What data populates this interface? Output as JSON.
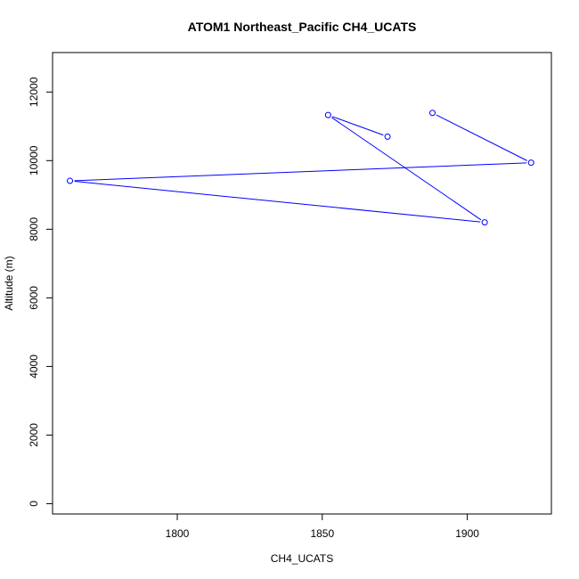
{
  "chart_data": {
    "type": "line",
    "title": "ATOM1 Northeast_Pacific CH4_UCATS",
    "xlabel": "CH4_UCATS",
    "ylabel": "Altitude (m)",
    "xlim": [
      1757,
      1929
    ],
    "ylim": [
      -300,
      13150
    ],
    "xticks": [
      1800,
      1850,
      1900
    ],
    "yticks": [
      0,
      2000,
      4000,
      6000,
      8000,
      10000,
      12000
    ],
    "xtick_labels": [
      "1800",
      "1850",
      "1900"
    ],
    "ytick_labels": [
      "0",
      "2000",
      "4000",
      "6000",
      "8000",
      "10000",
      "12000"
    ],
    "grid": false,
    "series": [
      {
        "color": "#0000ff",
        "marker": "open-circle",
        "points": [
          {
            "x": 1872.5,
            "y": 10700
          },
          {
            "x": 1852,
            "y": 11330
          },
          {
            "x": 1906,
            "y": 8200
          },
          {
            "x": 1763,
            "y": 9410
          },
          {
            "x": 1922,
            "y": 9940
          },
          {
            "x": 1888,
            "y": 11390
          }
        ]
      }
    ]
  }
}
